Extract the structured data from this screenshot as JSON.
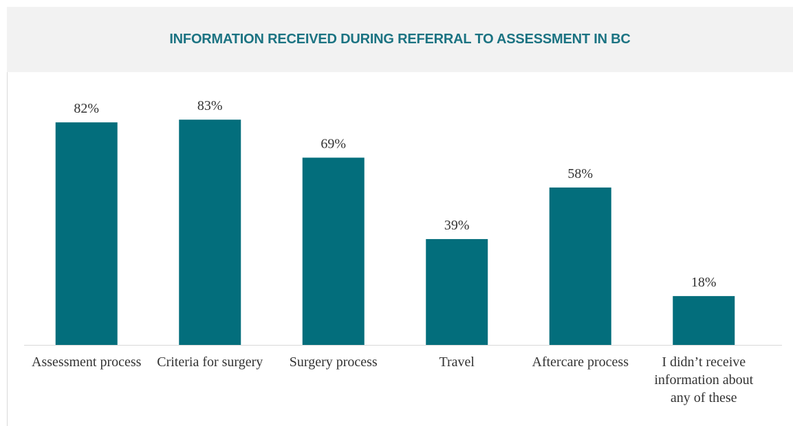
{
  "chart_data": {
    "type": "bar",
    "title": "INFORMATION RECEIVED DURING REFERRAL TO ASSESSMENT IN BC",
    "categories": [
      "Assessment process",
      "Criteria for surgery",
      "Surgery process",
      "Travel",
      "Aftercare process",
      "I didn’t receive information about any of these"
    ],
    "values": [
      82,
      83,
      69,
      39,
      58,
      18
    ],
    "value_labels": [
      "82%",
      "83%",
      "69%",
      "39%",
      "58%",
      "18%"
    ],
    "color": "#036e7c",
    "ylim": [
      0,
      100
    ]
  }
}
